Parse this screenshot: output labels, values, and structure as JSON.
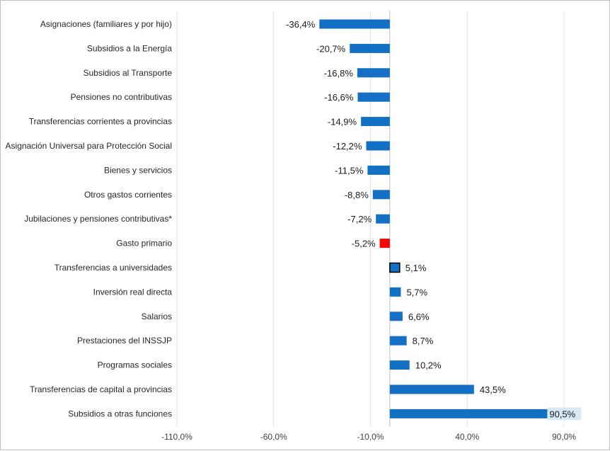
{
  "chart_data": {
    "type": "bar",
    "orientation": "horizontal",
    "title": "",
    "xlabel": "",
    "ylabel": "",
    "categories": [
      "Asignaciones (familiares y por hijo)",
      "Subsidios a la Energía",
      "Subsidios al Transporte",
      "Pensiones no contributivas",
      "Transferencias corrientes a provincias",
      "Asignación Universal para Protección Social",
      "Bienes y servicios",
      "Otros gastos corrientes",
      "Jubilaciones y pensiones contributivas*",
      "Gasto primario",
      "Transferencias a universidades",
      "Inversión real directa",
      "Salarios",
      "Prestaciones del INSSJP",
      "Programas sociales",
      "Transferencias de capital a provincias",
      "Subsidios a otras funciones"
    ],
    "values": [
      -36.4,
      -20.7,
      -16.8,
      -16.6,
      -14.9,
      -12.2,
      -11.5,
      -8.8,
      -7.2,
      -5.2,
      5.1,
      5.7,
      6.6,
      8.7,
      10.2,
      43.5,
      90.5
    ],
    "value_labels": [
      "-36,4%",
      "-20,7%",
      "-16,8%",
      "-16,6%",
      "-14,9%",
      "-12,2%",
      "-11,5%",
      "-8,8%",
      "-7,2%",
      "-5,2%",
      "5,1%",
      "5,7%",
      "6,6%",
      "8,7%",
      "10,2%",
      "43,5%",
      "90,5%"
    ],
    "colors": [
      "#1470c4",
      "#1470c4",
      "#1470c4",
      "#1470c4",
      "#1470c4",
      "#1470c4",
      "#1470c4",
      "#1470c4",
      "#1470c4",
      "#ff0000",
      "#1470c4",
      "#1470c4",
      "#1470c4",
      "#1470c4",
      "#1470c4",
      "#1470c4",
      "#1470c4"
    ],
    "highlight_outline": [
      false,
      false,
      false,
      false,
      false,
      false,
      false,
      false,
      false,
      false,
      true,
      false,
      false,
      false,
      false,
      false,
      false
    ],
    "xlim": [
      -110,
      90
    ],
    "xticks": [
      -110,
      -60,
      -10,
      40,
      90
    ],
    "xtick_labels": [
      "-110,0%",
      "-60,0%",
      "-10,0%",
      "40,0%",
      "90,0%"
    ],
    "grid": true,
    "legend": "none"
  }
}
